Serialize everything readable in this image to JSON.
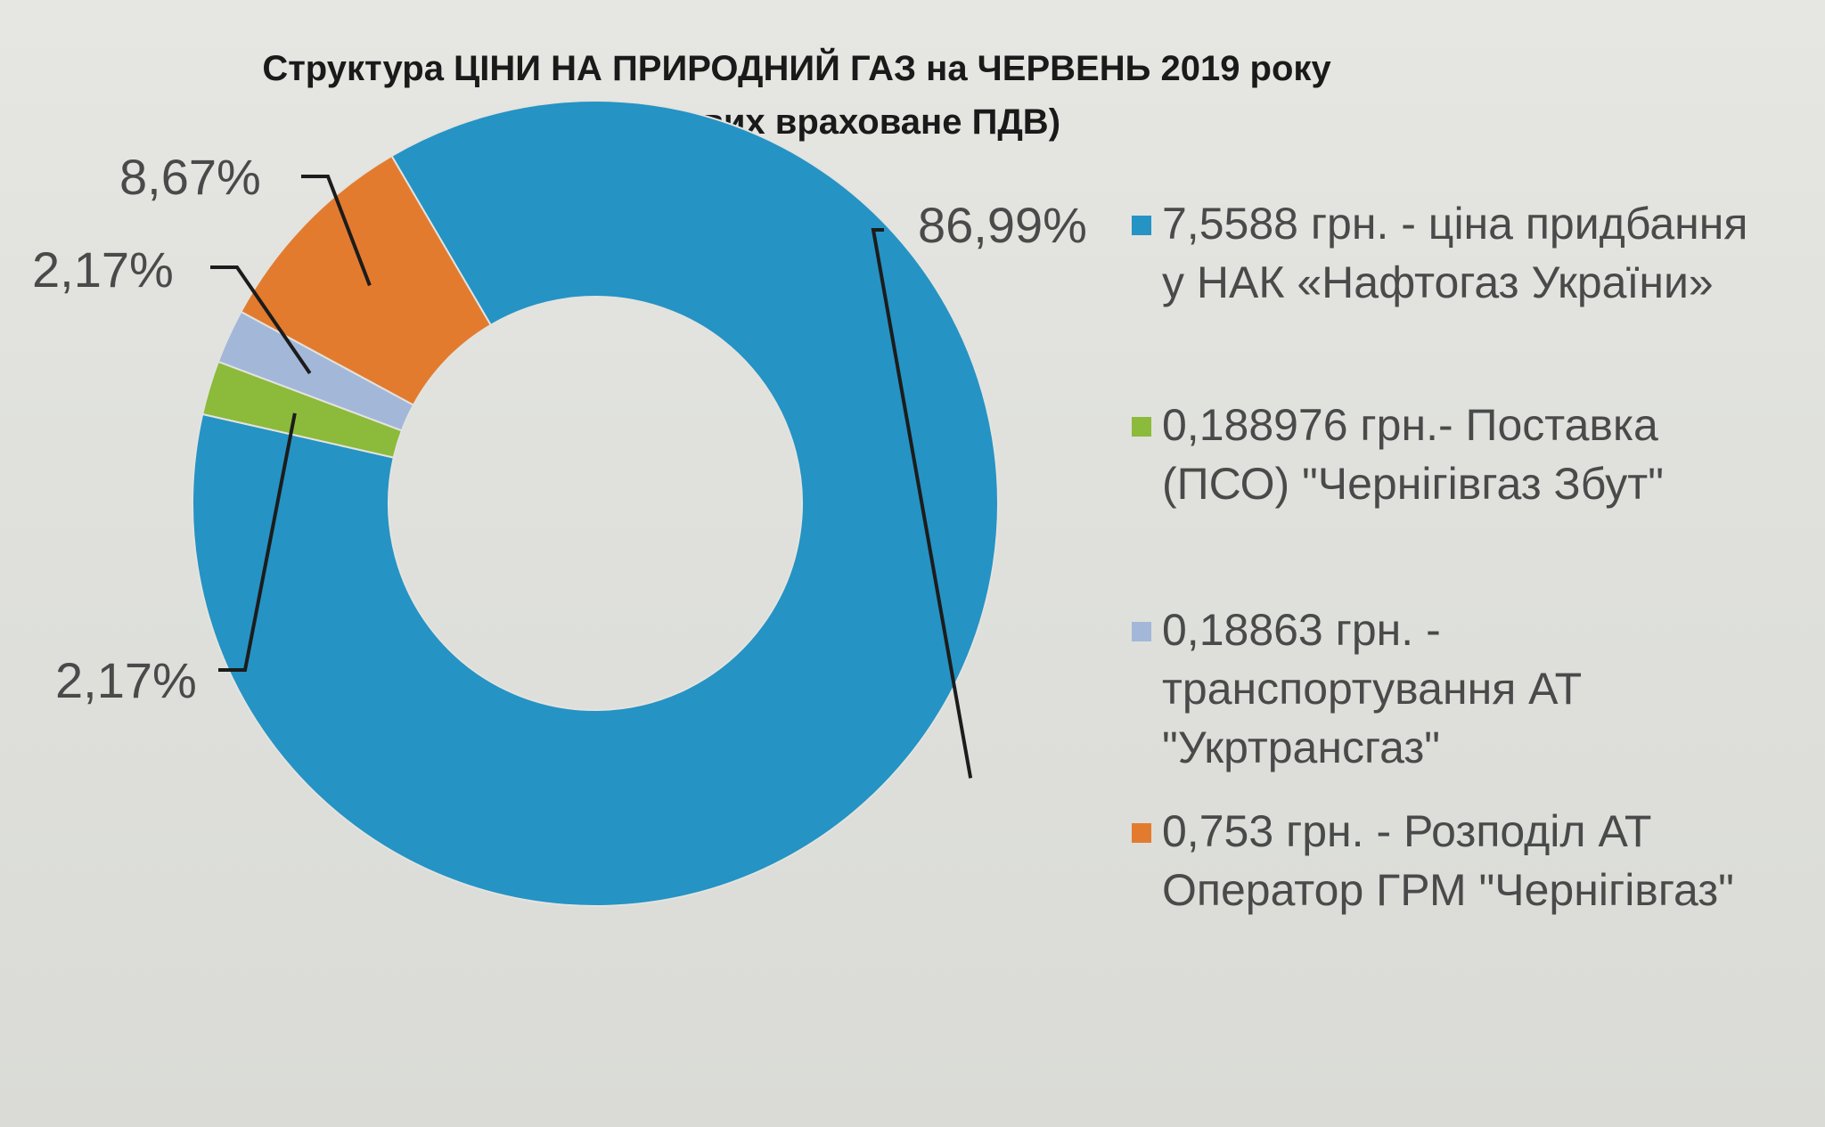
{
  "chart_data": {
    "type": "pie",
    "title": "Структура ЦІНИ НА ПРИРОДНИЙ ГАЗ на ЧЕРВЕНЬ 2019 року",
    "subtitle": "(в складових враховане ПДВ)",
    "donut": true,
    "legend_position": "right",
    "slices": [
      {
        "label": "7,5588 грн. - ціна придбання\nу НАК «Нафтогаз України»",
        "value": 86.99,
        "display": "86,99%",
        "color": "#2593c4"
      },
      {
        "label": "0,188976 грн.- Поставка\n(ПСО) \"Чернігівгаз Збут\"",
        "value": 2.17,
        "display": "2,17%",
        "color": "#8cba3a"
      },
      {
        "label": "0,18863 грн. -\nтранспортування АТ\n\"Укртрансгаз\"",
        "value": 2.17,
        "display": "2,17%",
        "color": "#a3b7d9"
      },
      {
        "label": "0,753 грн. - Розподіл АТ\nОператор ГРМ \"Чернігівгаз\"",
        "value": 8.67,
        "display": "8,67%",
        "color": "#e37b2e"
      }
    ]
  }
}
